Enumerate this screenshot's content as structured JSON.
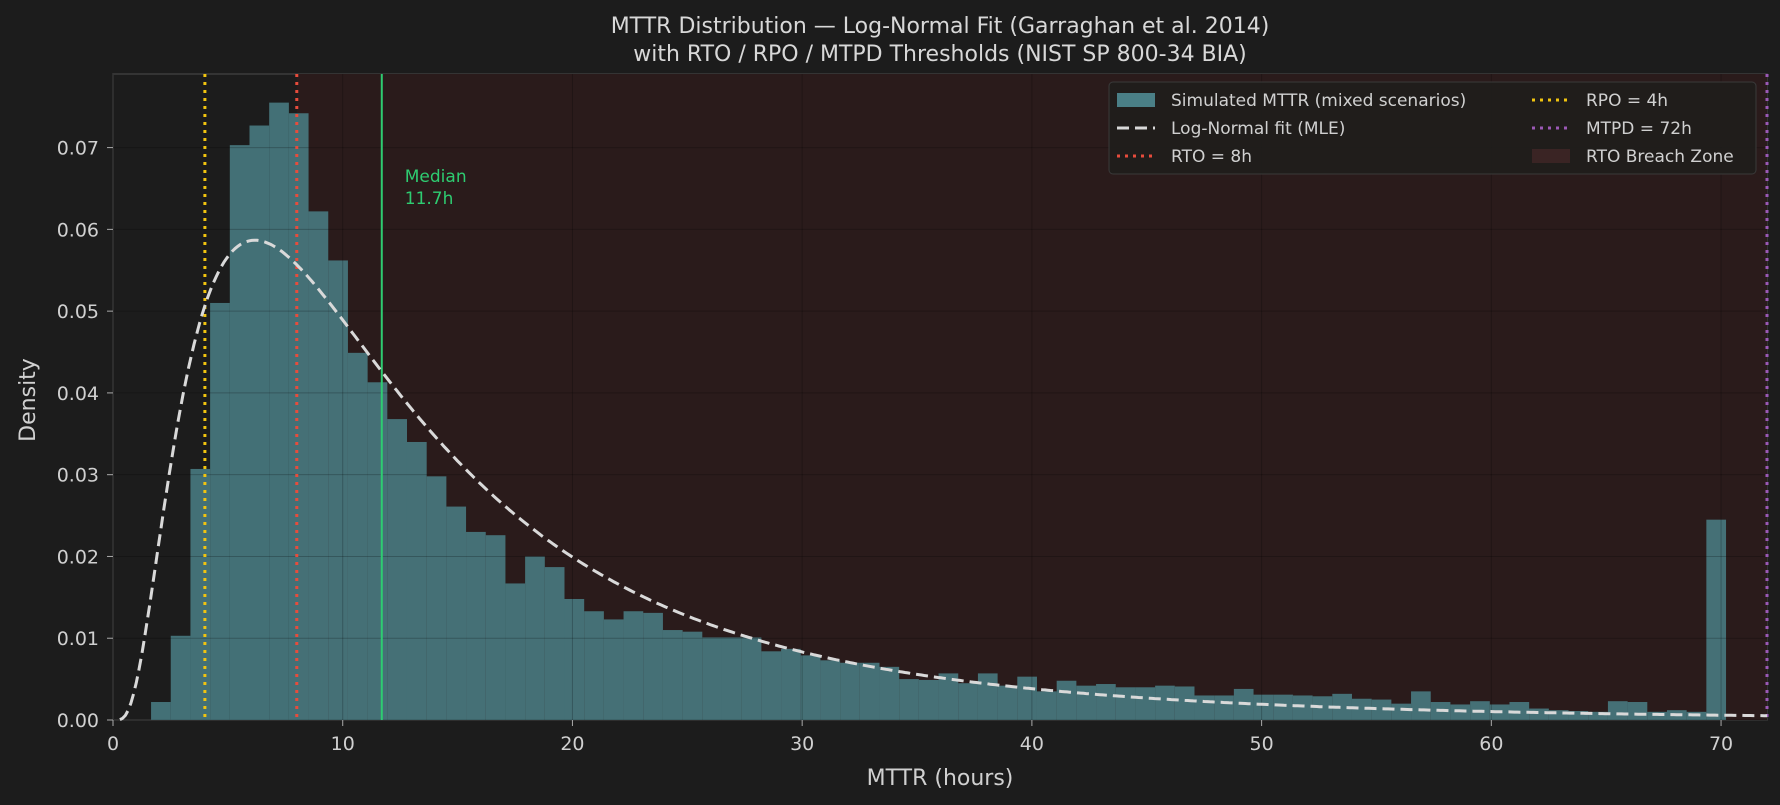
{
  "chart_data": {
    "type": "bar",
    "title": "MTTR Distribution — Log-Normal Fit (Garraghan et al. 2014)",
    "subtitle": "with RTO / RPO / MTPD Thresholds (NIST SP 800-34 BIA)",
    "xlabel": "MTTR (hours)",
    "ylabel": "Density",
    "xlim": [
      0,
      72
    ],
    "ylim": [
      0,
      0.079
    ],
    "xticks": [
      0,
      10,
      20,
      30,
      40,
      50,
      60,
      70
    ],
    "yticks": [
      0.0,
      0.01,
      0.02,
      0.03,
      0.04,
      0.05,
      0.06,
      0.07
    ],
    "grid": true,
    "legend_position": "top-right",
    "histogram": {
      "name": "Simulated MTTR (mixed scenarios)",
      "bin_start": 0.8,
      "bin_width": 0.857,
      "values": [
        0.0,
        0.0022,
        0.0103,
        0.0307,
        0.051,
        0.0703,
        0.0727,
        0.0755,
        0.0742,
        0.0622,
        0.0562,
        0.0449,
        0.0413,
        0.0368,
        0.034,
        0.0298,
        0.0261,
        0.023,
        0.0226,
        0.0167,
        0.02,
        0.0187,
        0.0148,
        0.0133,
        0.0123,
        0.0133,
        0.0131,
        0.011,
        0.0108,
        0.0101,
        0.0101,
        0.0101,
        0.0084,
        0.0087,
        0.0079,
        0.0073,
        0.007,
        0.007,
        0.0065,
        0.005,
        0.0049,
        0.0057,
        0.0045,
        0.0057,
        0.0042,
        0.0053,
        0.0035,
        0.0048,
        0.0042,
        0.0044,
        0.004,
        0.004,
        0.0042,
        0.0041,
        0.003,
        0.003,
        0.0038,
        0.0031,
        0.0031,
        0.003,
        0.0029,
        0.0032,
        0.0026,
        0.0025,
        0.002,
        0.0035,
        0.0022,
        0.0019,
        0.0023,
        0.0019,
        0.0022,
        0.0014,
        0.0012,
        0.0011,
        0.001,
        0.0023,
        0.0022,
        0.001,
        0.0012,
        0.001,
        0.0245
      ],
      "color": "#4a7f86"
    },
    "fit": {
      "name": "Log-Normal fit (MLE)",
      "mu": 2.46,
      "sigma": 0.8,
      "color": "#d9d9d9"
    },
    "thresholds": [
      {
        "name": "RPO = 4h",
        "x": 4,
        "color": "#f1c40f"
      },
      {
        "name": "RTO = 8h",
        "x": 8,
        "color": "#e74c3c"
      },
      {
        "name": "MTPD = 72h",
        "x": 72,
        "color": "#9b59b6"
      }
    ],
    "median": {
      "x": 11.7,
      "label_line1": "Median",
      "label_line2": "11.7h",
      "color": "#2ecc71"
    },
    "breach_zone": {
      "name": "RTO Breach Zone",
      "from": 8,
      "to": 72,
      "color": "#2a1b1b"
    },
    "legend": [
      "Simulated MTTR (mixed scenarios)",
      "Log-Normal fit (MLE)",
      "RTO = 8h",
      "RPO = 4h",
      "MTPD = 72h",
      "RTO Breach Zone"
    ]
  }
}
